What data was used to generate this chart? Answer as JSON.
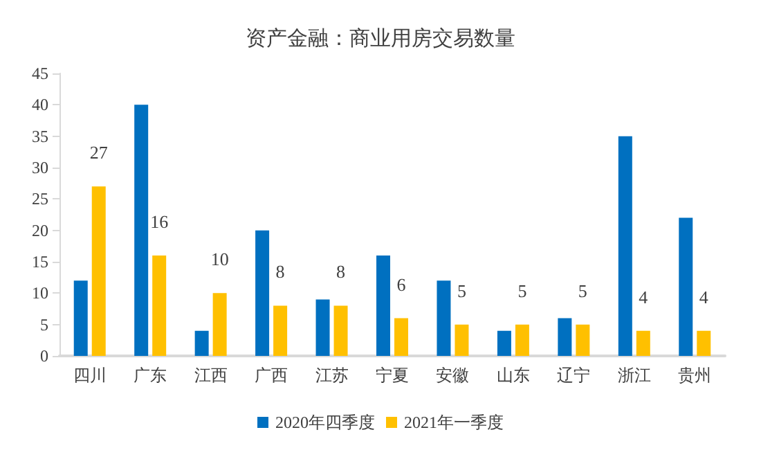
{
  "chart_data": {
    "type": "bar",
    "title": "资产金融：商业用房交易数量",
    "categories": [
      "四川",
      "广东",
      "江西",
      "广西",
      "江苏",
      "宁夏",
      "安徽",
      "山东",
      "辽宁",
      "浙江",
      "贵州"
    ],
    "series": [
      {
        "name": "2020年四季度",
        "color": "#0070c0",
        "values": [
          12,
          40,
          4,
          20,
          9,
          16,
          12,
          4,
          6,
          35,
          22
        ]
      },
      {
        "name": "2021年一季度",
        "color": "#ffc000",
        "values": [
          27,
          16,
          10,
          8,
          8,
          6,
          5,
          5,
          5,
          4,
          4
        ],
        "value_labels": [
          "27",
          "16",
          "10",
          "8",
          "8",
          "6",
          "5",
          "5",
          "5",
          "4",
          "4"
        ]
      }
    ],
    "ylim": [
      0,
      45
    ],
    "yticks": [
      0,
      5,
      10,
      15,
      20,
      25,
      30,
      35,
      40,
      45
    ],
    "grid": false,
    "legend": "bottom"
  }
}
